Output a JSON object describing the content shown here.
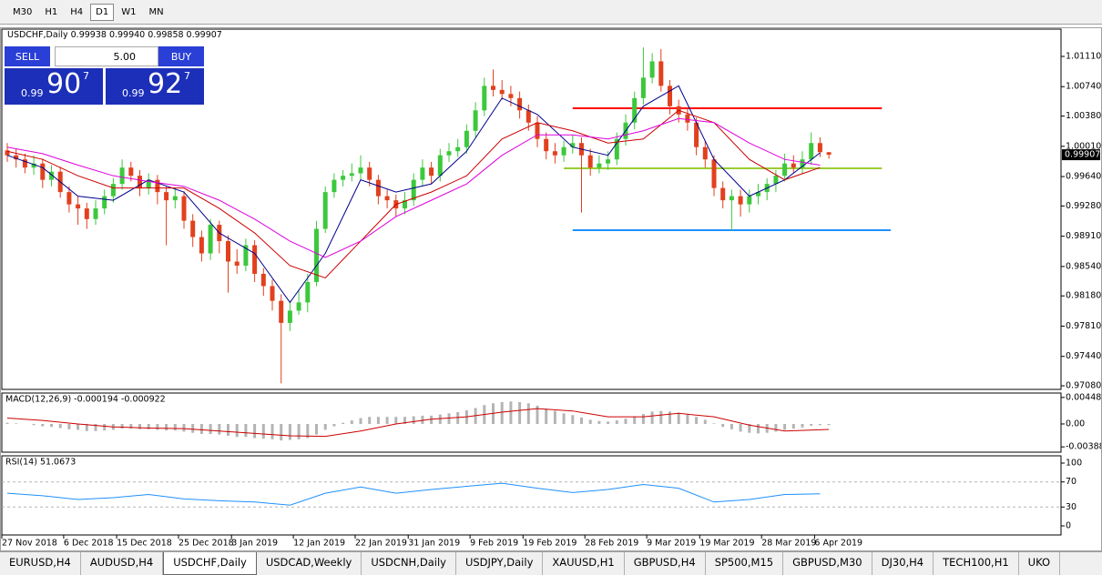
{
  "toolbar": {
    "timeframes": [
      "M30",
      "H1",
      "H4",
      "D1",
      "W1",
      "MN"
    ],
    "active": 3
  },
  "trade_panel": {
    "sell": "SELL",
    "buy": "BUY",
    "lot": "5.00",
    "bid_prefix": "0.99",
    "bid_big": "90",
    "bid_sup": "7",
    "ask_prefix": "0.99",
    "ask_big": "92",
    "ask_sup": "7"
  },
  "chart_data": [
    {
      "type": "candlestick",
      "title": "USDCHF,Daily",
      "subtitle": "0.99938 0.99940 0.99858 0.99907",
      "up_color": "#3cc83c",
      "down_color": "#e2401e",
      "categories": [
        "27 Nov 2018",
        null,
        null,
        null,
        null,
        null,
        null,
        "6 Dec 2018",
        null,
        null,
        null,
        null,
        null,
        "15 Dec 2018",
        null,
        null,
        null,
        null,
        null,
        null,
        "25 Dec 2018",
        null,
        null,
        null,
        null,
        null,
        "3 Jan 2019",
        null,
        null,
        null,
        null,
        null,
        null,
        "12 Jan 2019",
        null,
        null,
        null,
        null,
        null,
        null,
        "22 Jan 2019",
        null,
        null,
        null,
        null,
        null,
        "31 Jan 2019",
        null,
        null,
        null,
        null,
        null,
        null,
        "9 Feb 2019",
        null,
        null,
        null,
        null,
        null,
        "19 Feb 2019",
        null,
        null,
        null,
        null,
        null,
        null,
        "28 Feb 2019",
        null,
        null,
        null,
        null,
        null,
        null,
        "9 Mar 2019",
        null,
        null,
        null,
        null,
        null,
        "19 Mar 2019",
        null,
        null,
        null,
        null,
        null,
        null,
        "28 Mar 2019",
        null,
        null,
        null,
        null,
        null,
        "6 Apr 2019",
        null
      ],
      "open": [
        0.9996,
        0.999,
        0.9985,
        0.9975,
        0.998,
        0.996,
        0.997,
        0.9945,
        0.993,
        0.9925,
        0.9912,
        0.9925,
        0.994,
        0.9955,
        0.9975,
        0.9965,
        0.995,
        0.996,
        0.9945,
        0.9935,
        0.994,
        0.991,
        0.989,
        0.987,
        0.9905,
        0.9885,
        0.986,
        0.9855,
        0.988,
        0.9845,
        0.983,
        0.9812,
        0.9785,
        0.98,
        0.981,
        0.9835,
        0.99,
        0.9945,
        0.996,
        0.9965,
        0.9968,
        0.9975,
        0.996,
        0.994,
        0.9935,
        0.9925,
        0.9935,
        0.996,
        0.9975,
        0.9965,
        0.999,
        0.9995,
        1.0,
        1.002,
        1.0045,
        1.0075,
        1.007,
        1.0065,
        1.006,
        1.0045,
        1.003,
        1.001,
        0.9995,
        0.999,
        1.0,
        1.0005,
        0.999,
        0.9975,
        0.998,
        0.9985,
        1.001,
        1.003,
        1.006,
        1.0085,
        1.0105,
        1.0075,
        1.005,
        1.004,
        1.003,
        1.0,
        0.9985,
        0.995,
        0.9935,
        0.994,
        0.993,
        0.994,
        0.9945,
        0.9955,
        0.9965,
        0.998,
        0.9975,
        0.9985,
        1.0005,
        0.99938
      ],
      "high": [
        1.0005,
        0.9998,
        0.9992,
        0.999,
        0.9986,
        0.9978,
        0.9976,
        0.9952,
        0.994,
        0.9932,
        0.9935,
        0.9948,
        0.9962,
        0.9985,
        0.9982,
        0.9972,
        0.9968,
        0.9966,
        0.9952,
        0.995,
        0.9946,
        0.9918,
        0.9898,
        0.9912,
        0.991,
        0.9892,
        0.9875,
        0.9888,
        0.9886,
        0.9852,
        0.9838,
        0.982,
        0.9812,
        0.9825,
        0.9845,
        0.991,
        0.9952,
        0.9968,
        0.9972,
        0.998,
        0.999,
        0.9982,
        0.9966,
        0.9948,
        0.9942,
        0.9945,
        0.9968,
        0.9985,
        0.9982,
        0.9998,
        1.0005,
        1.001,
        1.0028,
        1.0055,
        1.0085,
        1.0095,
        1.0082,
        1.0075,
        1.0068,
        1.0052,
        1.0038,
        1.0018,
        1.0005,
        1.0008,
        1.0015,
        1.0012,
        0.9998,
        0.999,
        0.9995,
        1.0018,
        1.004,
        1.0068,
        1.0122,
        1.0115,
        1.012,
        1.0082,
        1.0058,
        1.0048,
        1.0036,
        1.0008,
        0.999,
        0.9958,
        0.9948,
        0.9948,
        0.9948,
        0.9955,
        0.9962,
        0.9972,
        0.9992,
        0.999,
        0.9995,
        1.0018,
        1.0012,
        0.9994
      ],
      "low": [
        0.9982,
        0.9975,
        0.9968,
        0.9966,
        0.995,
        0.9952,
        0.9938,
        0.992,
        0.9905,
        0.99,
        0.9905,
        0.9918,
        0.9932,
        0.9948,
        0.9958,
        0.994,
        0.9942,
        0.993,
        0.988,
        0.9925,
        0.99,
        0.9878,
        0.986,
        0.9862,
        0.987,
        0.9822,
        0.9845,
        0.9848,
        0.9835,
        0.9818,
        0.98,
        0.9711,
        0.9775,
        0.9795,
        0.9798,
        0.983,
        0.9895,
        0.9938,
        0.9952,
        0.9958,
        0.996,
        0.9952,
        0.993,
        0.9925,
        0.9915,
        0.9918,
        0.9928,
        0.9952,
        0.9955,
        0.9958,
        0.9982,
        0.9988,
        0.9992,
        1.0012,
        1.0038,
        1.0062,
        1.0058,
        1.005,
        1.0035,
        1.002,
        1.0,
        0.9985,
        0.998,
        0.9982,
        0.9992,
        0.992,
        0.9965,
        0.9968,
        0.9972,
        0.9978,
        1.0002,
        1.0022,
        1.0052,
        1.0078,
        1.0068,
        1.004,
        1.003,
        1.002,
        0.999,
        0.9975,
        0.994,
        0.9925,
        0.9898,
        0.9915,
        0.992,
        0.993,
        0.9935,
        0.9945,
        0.9958,
        0.9968,
        0.9968,
        0.9978,
        0.9988,
        0.99858
      ],
      "close": [
        0.999,
        0.9985,
        0.9975,
        0.998,
        0.996,
        0.997,
        0.9945,
        0.993,
        0.9925,
        0.9912,
        0.9925,
        0.994,
        0.9955,
        0.9975,
        0.9965,
        0.995,
        0.996,
        0.9945,
        0.9935,
        0.994,
        0.991,
        0.989,
        0.987,
        0.9905,
        0.9885,
        0.986,
        0.9855,
        0.988,
        0.9845,
        0.983,
        0.9812,
        0.9785,
        0.98,
        0.981,
        0.9835,
        0.99,
        0.9945,
        0.996,
        0.9965,
        0.9968,
        0.9975,
        0.996,
        0.994,
        0.9935,
        0.9925,
        0.9935,
        0.996,
        0.9975,
        0.9965,
        0.999,
        0.9995,
        1.0,
        1.002,
        1.0045,
        1.0075,
        1.007,
        1.0065,
        1.006,
        1.0045,
        1.003,
        1.001,
        0.9995,
        0.999,
        1.0,
        1.0005,
        0.999,
        0.9975,
        0.998,
        0.9985,
        1.001,
        1.003,
        1.006,
        1.0085,
        1.0105,
        1.0075,
        1.005,
        1.004,
        1.003,
        1.0,
        0.9985,
        0.995,
        0.9935,
        0.994,
        0.993,
        0.994,
        0.9945,
        0.9955,
        0.9965,
        0.998,
        0.9975,
        0.9985,
        1.0005,
        0.99938,
        0.99907
      ],
      "lines": [
        {
          "color": "#00008b",
          "x": [
            0,
            4,
            8,
            12,
            16,
            20,
            24,
            28,
            32,
            36,
            40,
            44,
            48,
            52,
            56,
            60,
            64,
            68,
            72,
            76,
            80,
            84,
            88,
            92
          ],
          "values": [
            0.999,
            0.9975,
            0.994,
            0.9935,
            0.996,
            0.9945,
            0.9895,
            0.987,
            0.981,
            0.987,
            0.996,
            0.9945,
            0.9955,
            0.9995,
            1.006,
            1.004,
            1.0,
            0.999,
            1.005,
            1.0075,
            0.9985,
            0.994,
            0.996,
            0.9993
          ]
        },
        {
          "color": "#cc0000",
          "x": [
            0,
            4,
            8,
            12,
            16,
            20,
            24,
            28,
            32,
            36,
            40,
            44,
            48,
            52,
            56,
            60,
            64,
            68,
            72,
            76,
            80,
            84,
            88,
            92
          ],
          "values": [
            0.9995,
            0.9985,
            0.9965,
            0.995,
            0.995,
            0.995,
            0.9925,
            0.9895,
            0.9855,
            0.984,
            0.9885,
            0.993,
            0.9945,
            0.9965,
            1.001,
            1.003,
            1.002,
            1.0005,
            1.001,
            1.0045,
            1.003,
            0.9985,
            0.996,
            0.9975
          ]
        },
        {
          "color": "#dd00dd",
          "x": [
            0,
            4,
            8,
            12,
            16,
            20,
            24,
            28,
            32,
            36,
            40,
            44,
            48,
            52,
            56,
            60,
            64,
            68,
            72,
            76,
            80,
            84,
            88,
            92
          ],
          "values": [
            1.0,
            0.9992,
            0.9978,
            0.9965,
            0.9958,
            0.9952,
            0.9935,
            0.9912,
            0.9885,
            0.9865,
            0.9885,
            0.9915,
            0.9935,
            0.9955,
            0.999,
            1.0015,
            1.0015,
            1.001,
            1.002,
            1.0035,
            1.003,
            1.0005,
            0.9985,
            0.9978
          ]
        }
      ],
      "hlines": [
        {
          "value": 1.00476,
          "color": "#ff0000",
          "x": [
            64,
            99
          ]
        },
        {
          "value": 0.99741,
          "color": "#9acd32",
          "x": [
            63,
            99
          ]
        },
        {
          "value": 0.98984,
          "color": "#1e90ff",
          "x": [
            64,
            100
          ]
        }
      ],
      "last_price": {
        "value": 0.99907,
        "label": "0.99907"
      },
      "ylim": [
        0.97036,
        1.01444
      ],
      "yticks": [
        {
          "value": 1.0111,
          "label": "1.01110"
        },
        {
          "value": 1.0074,
          "label": "1.00740"
        },
        {
          "value": 1.0038,
          "label": "1.00380"
        },
        {
          "value": 1.0001,
          "label": "1.00010"
        },
        {
          "value": 0.9964,
          "label": "0.99640"
        },
        {
          "value": 0.9928,
          "label": "0.99280"
        },
        {
          "value": 0.9891,
          "label": "0.98910"
        },
        {
          "value": 0.9854,
          "label": "0.98540"
        },
        {
          "value": 0.9818,
          "label": "0.98180"
        },
        {
          "value": 0.9781,
          "label": "0.97810"
        },
        {
          "value": 0.9744,
          "label": "0.97440"
        },
        {
          "value": 0.9708,
          "label": "0.97080"
        }
      ]
    },
    {
      "type": "bar",
      "title": "MACD(12,26,9) -0.000194 -0.000922",
      "color": "#b4b4b4",
      "values": [
        0.0002,
        0.0001,
        0.0,
        -0.0002,
        -0.0004,
        -0.0005,
        -0.0007,
        -0.0009,
        -0.001,
        -0.0012,
        -0.0012,
        -0.0011,
        -0.001,
        -0.0008,
        -0.0008,
        -0.0009,
        -0.0009,
        -0.001,
        -0.0011,
        -0.0011,
        -0.0013,
        -0.0015,
        -0.0017,
        -0.0017,
        -0.0018,
        -0.002,
        -0.0022,
        -0.0022,
        -0.0024,
        -0.0025,
        -0.0026,
        -0.0028,
        -0.0027,
        -0.0026,
        -0.0024,
        -0.0018,
        -0.001,
        -0.0004,
        0.0002,
        0.0006,
        0.001,
        0.0012,
        0.0012,
        0.0012,
        0.0012,
        0.0012,
        0.0013,
        0.0014,
        0.0014,
        0.0016,
        0.0018,
        0.002,
        0.0023,
        0.0027,
        0.0032,
        0.0035,
        0.0037,
        0.0038,
        0.0037,
        0.0035,
        0.0031,
        0.0026,
        0.0022,
        0.0018,
        0.0015,
        0.0011,
        0.0007,
        0.0005,
        0.0004,
        0.0006,
        0.0009,
        0.0013,
        0.0017,
        0.0021,
        0.0022,
        0.0021,
        0.0019,
        0.0016,
        0.0012,
        0.0007,
        0.0001,
        -0.0005,
        -0.0009,
        -0.0013,
        -0.0015,
        -0.0016,
        -0.0015,
        -0.0013,
        -0.001,
        -0.0008,
        -0.0006,
        -0.0003,
        -0.0002,
        -0.0002
      ],
      "lines": [
        {
          "color": "#cc0000",
          "x": [
            0,
            4,
            8,
            12,
            16,
            20,
            24,
            28,
            32,
            36,
            40,
            44,
            48,
            52,
            56,
            60,
            64,
            68,
            72,
            76,
            80,
            84,
            88,
            93
          ],
          "values": [
            0.001,
            0.0006,
            0.0,
            -0.0005,
            -0.0007,
            -0.0008,
            -0.0012,
            -0.0016,
            -0.002,
            -0.0021,
            -0.0012,
            0.0,
            0.0008,
            0.0012,
            0.002,
            0.0026,
            0.0022,
            0.0012,
            0.0012,
            0.0018,
            0.0012,
            -0.0002,
            -0.0012,
            -0.000922
          ]
        }
      ],
      "ylim": [
        -0.00478,
        0.005233
      ],
      "yticks": [
        0.004487,
        {
          "value": 0,
          "label": "0.00"
        },
        -0.003883
      ]
    },
    {
      "type": "line",
      "title": "RSI(14) 51.0673",
      "lines": [
        {
          "color": "#1e90ff",
          "x": [
            0,
            4,
            8,
            12,
            16,
            20,
            24,
            28,
            32,
            36,
            40,
            44,
            48,
            52,
            56,
            60,
            64,
            68,
            72,
            76,
            80,
            84,
            88,
            92
          ],
          "values": [
            52,
            48,
            42,
            45,
            50,
            43,
            40,
            38,
            33,
            52,
            62,
            52,
            58,
            63,
            68,
            60,
            53,
            58,
            66,
            60,
            38,
            42,
            50,
            51.0673
          ]
        }
      ],
      "hlines": [
        {
          "value": 70,
          "color": "#b4b4b4",
          "style": "dashed"
        },
        {
          "value": 30,
          "color": "#b4b4b4",
          "style": "dashed"
        }
      ],
      "ylim": [
        -14.5,
        111.6
      ],
      "yticks": [
        100,
        70,
        30,
        0
      ]
    }
  ],
  "tabs": {
    "items": [
      "EURUSD,H4",
      "AUDUSD,H4",
      "USDCHF,Daily",
      "USDCAD,Weekly",
      "USDCNH,Daily",
      "USDJPY,Daily",
      "XAUUSD,H1",
      "GBPUSD,H4",
      "SP500,M15",
      "GBPUSD,M30",
      "DJ30,H4",
      "TECH100,H1",
      "UKO"
    ],
    "active": 2
  }
}
